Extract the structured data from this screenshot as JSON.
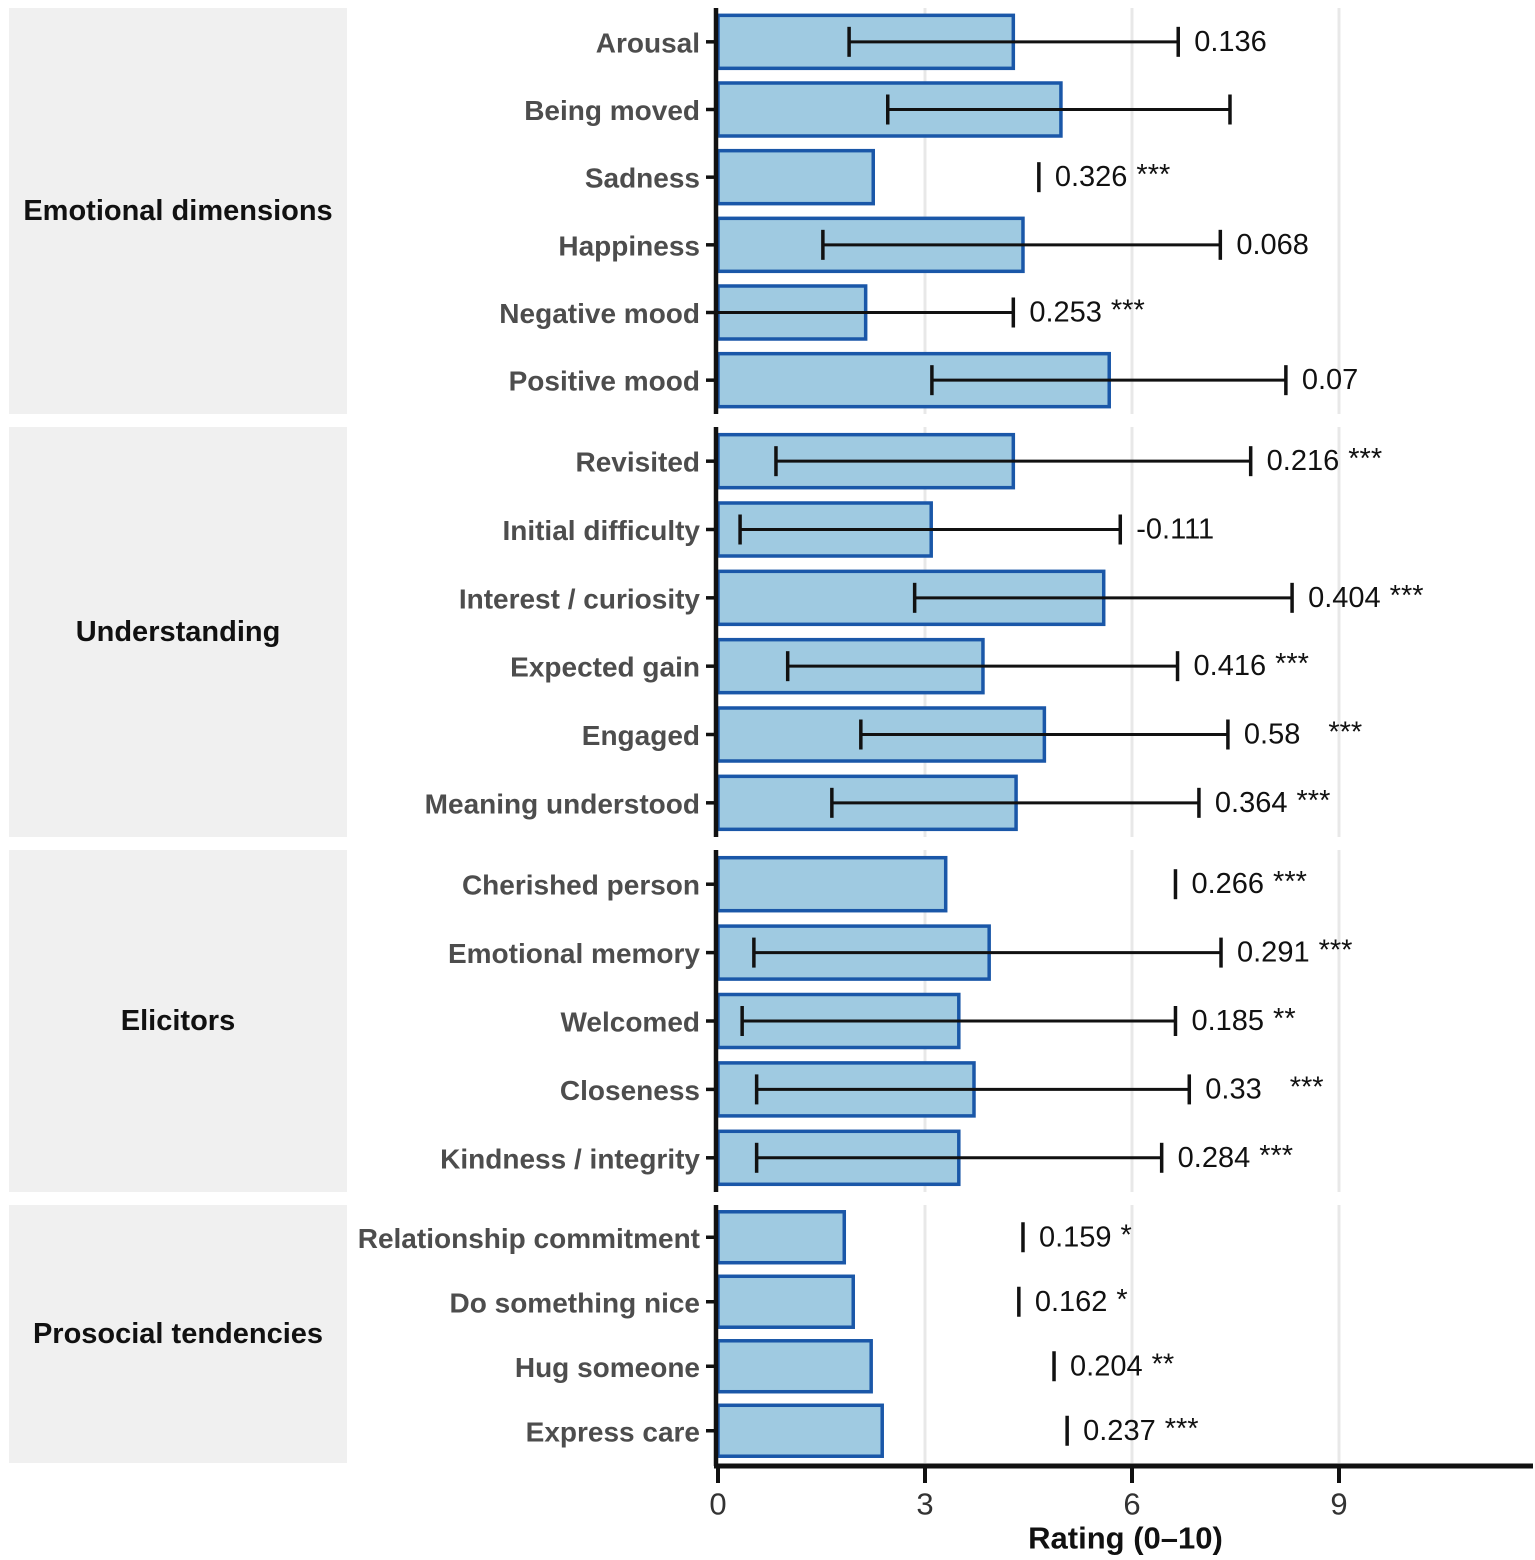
{
  "chart_data": {
    "type": "bar",
    "orientation": "horizontal",
    "title": "",
    "xlabel": "Rating (0–10)",
    "xlim": [
      0,
      11.8
    ],
    "xticks": [
      0,
      3,
      6,
      9
    ],
    "grid": true,
    "legend": "none",
    "colors": {
      "bar_fill": "#9FCAE1",
      "bar_stroke": "#1A57A8",
      "facet_fill": "#F0F0F0",
      "row_label": "#4D4D4D",
      "facet_label": "#111111",
      "annotation": "#111111",
      "axis": "#111111",
      "tick_label": "#333333",
      "gridline": "#E8E8E8"
    },
    "panels": [
      {
        "label": "Emotional dimensions",
        "rows": [
          {
            "label": "Arousal",
            "value": 4.28,
            "err": [
              1.9,
              6.67
            ],
            "ann": "0.136",
            "stars": ""
          },
          {
            "label": "Being moved",
            "value": 4.97,
            "err": [
              2.46,
              7.42
            ],
            "ann": "",
            "stars": ""
          },
          {
            "label": "Sadness",
            "value": 2.25,
            "cap": 4.65,
            "ann": "0.326",
            "stars": "***"
          },
          {
            "label": "Happiness",
            "value": 4.42,
            "err": [
              1.52,
              7.28
            ],
            "ann": "0.068",
            "stars": ""
          },
          {
            "label": "Negative mood",
            "value": 2.14,
            "err": [
              0.0,
              4.28
            ],
            "ann": "0.253",
            "stars": "***"
          },
          {
            "label": "Positive mood",
            "value": 5.67,
            "err": [
              3.1,
              8.23
            ],
            "ann": "0.07",
            "stars": ""
          }
        ]
      },
      {
        "label": "Understanding",
        "rows": [
          {
            "label": "Revisited",
            "value": 4.28,
            "err": [
              0.84,
              7.72
            ],
            "ann": "0.216",
            "stars": "***"
          },
          {
            "label": "Initial difficulty",
            "value": 3.09,
            "err": [
              0.32,
              5.83
            ],
            "ann": "-0.111",
            "stars": ""
          },
          {
            "label": "Interest / curiosity",
            "value": 5.59,
            "err": [
              2.85,
              8.32
            ],
            "ann": "0.404",
            "stars": "***"
          },
          {
            "label": "Expected gain",
            "value": 3.84,
            "err": [
              1.01,
              6.66
            ],
            "ann": "0.416",
            "stars": "***"
          },
          {
            "label": "Engaged",
            "value": 4.73,
            "err": [
              2.07,
              7.39
            ],
            "ann": "0.58",
            "stars": "***",
            "stars_gap": true
          },
          {
            "label": "Meaning understood",
            "value": 4.32,
            "err": [
              1.65,
              6.97
            ],
            "ann": "0.364",
            "stars": "***"
          }
        ]
      },
      {
        "label": "Elicitors",
        "rows": [
          {
            "label": "Cherished person",
            "value": 3.3,
            "cap": 6.63,
            "ann": "0.266",
            "stars": "***"
          },
          {
            "label": "Emotional memory",
            "value": 3.93,
            "err": [
              0.52,
              7.29
            ],
            "ann": "0.291",
            "stars": "***"
          },
          {
            "label": "Welcomed",
            "value": 3.49,
            "err": [
              0.35,
              6.63
            ],
            "ann": "0.185",
            "stars": "**"
          },
          {
            "label": "Closeness",
            "value": 3.71,
            "err": [
              0.56,
              6.83
            ],
            "ann": "0.33",
            "stars": "***",
            "stars_gap": true
          },
          {
            "label": "Kindness / integrity",
            "value": 3.49,
            "err": [
              0.56,
              6.43
            ],
            "ann": "0.284",
            "stars": "***"
          }
        ]
      },
      {
        "label": "Prosocial tendencies",
        "rows": [
          {
            "label": "Relationship commitment",
            "value": 1.83,
            "cap": 4.42,
            "ann": "0.159",
            "stars": "*"
          },
          {
            "label": "Do something nice",
            "value": 1.96,
            "cap": 4.36,
            "ann": "0.162",
            "stars": "*"
          },
          {
            "label": "Hug someone",
            "value": 2.22,
            "cap": 4.87,
            "ann": "0.204",
            "stars": "**"
          },
          {
            "label": "Express care",
            "value": 2.38,
            "cap": 5.06,
            "ann": "0.237",
            "stars": "***"
          }
        ]
      }
    ]
  }
}
